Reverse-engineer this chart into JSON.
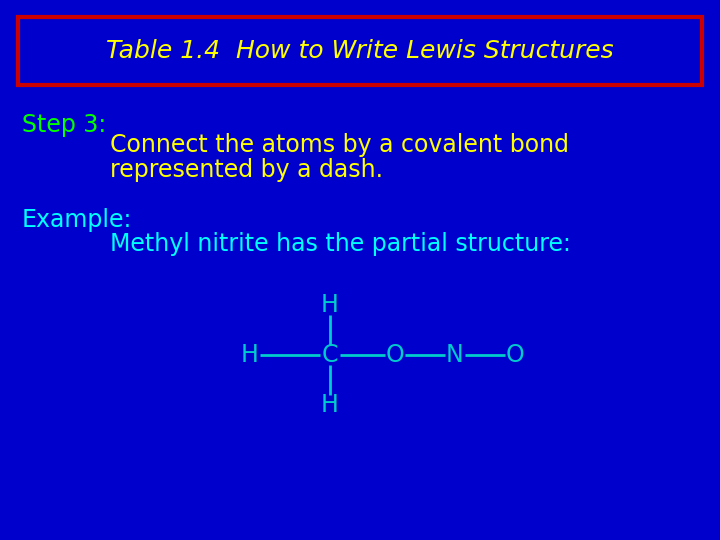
{
  "bg_color": "#0000CC",
  "title_text": "Table 1.4  How to Write Lewis Structures",
  "title_color": "#FFFF00",
  "title_box_edge_color": "#CC0000",
  "step_label": "Step 3:",
  "step_color": "#00FF00",
  "step_detail_line1": "Connect the atoms by a covalent bond",
  "step_detail_line2": "represented by a dash.",
  "step_detail_color": "#FFFF00",
  "example_label": "Example:",
  "example_color": "#00FFFF",
  "example_detail": "Methyl nitrite has the partial structure:",
  "example_detail_color": "#00FFFF",
  "molecule_color": "#00CCCC",
  "title_fontsize": 18,
  "step_fontsize": 17,
  "detail_fontsize": 17,
  "molecule_fontsize": 17
}
